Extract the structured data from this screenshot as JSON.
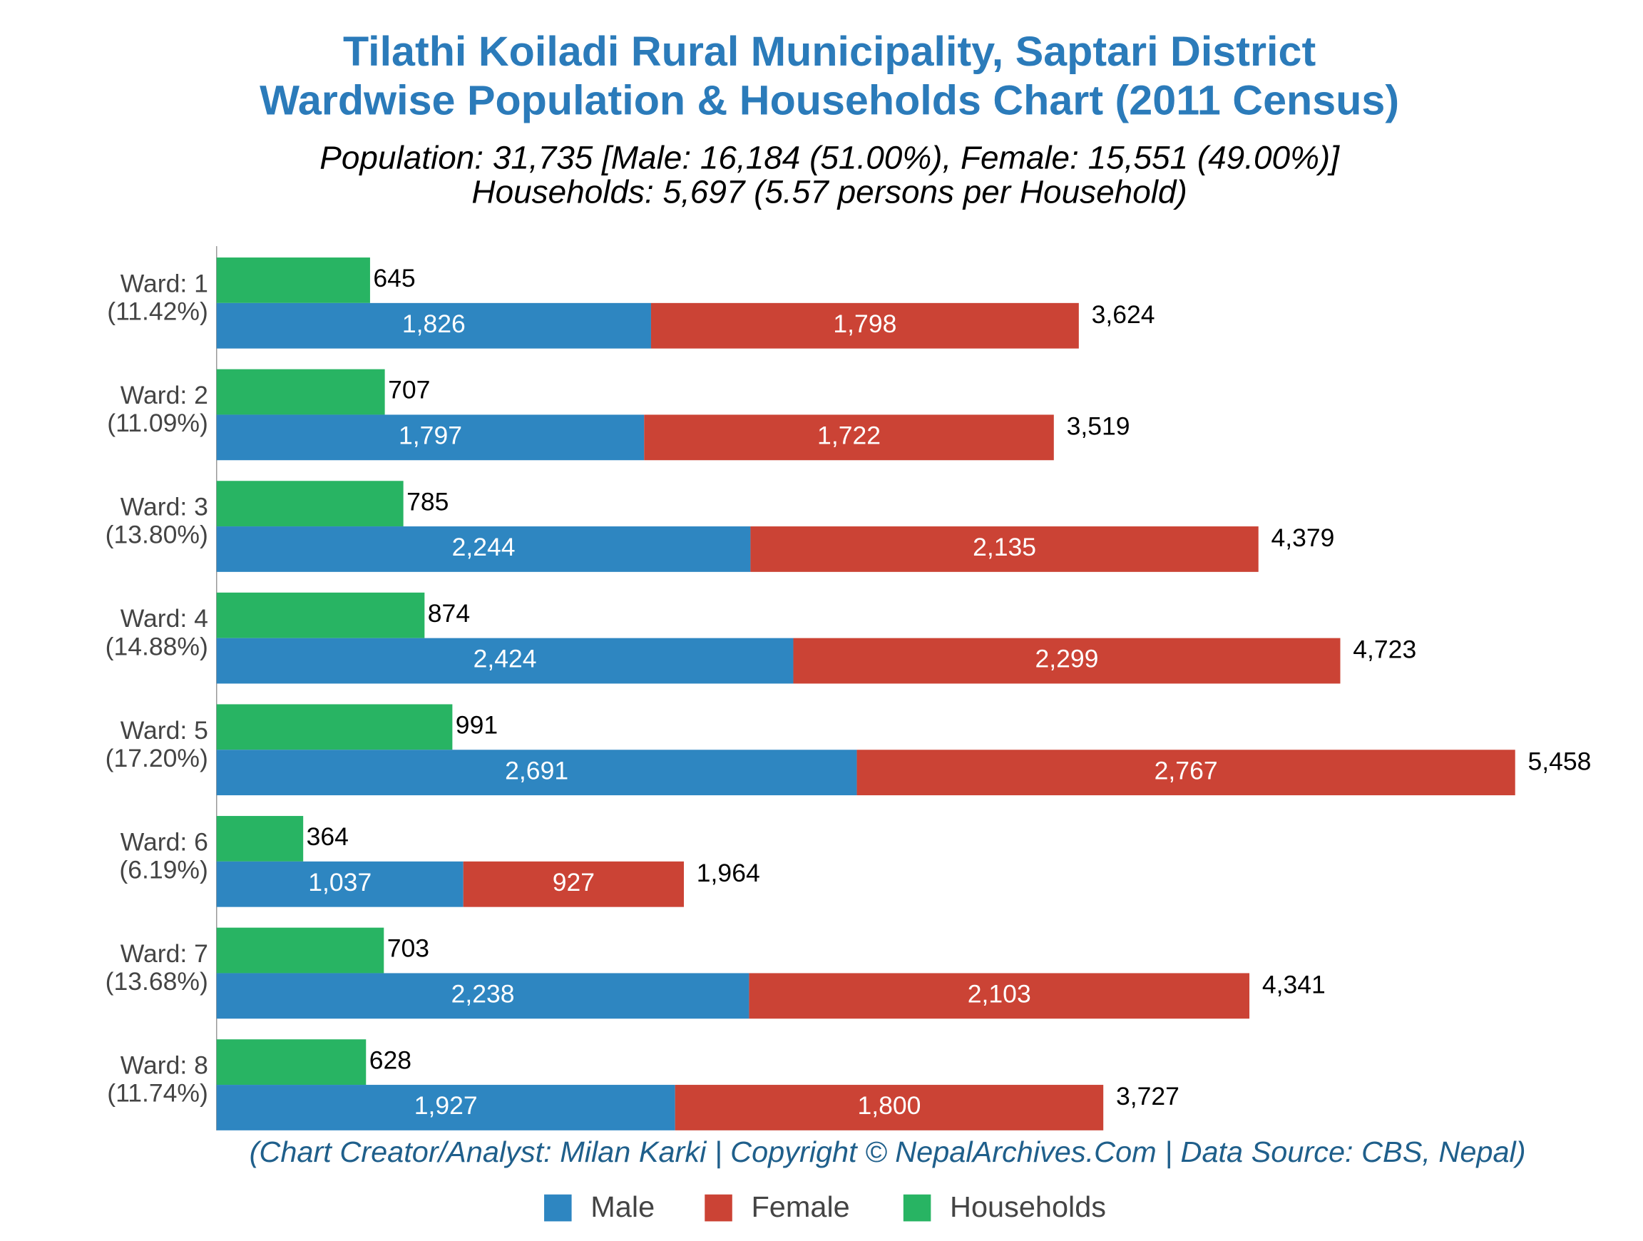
{
  "chart_data": {
    "type": "stacked-barh",
    "title": "Tilathi Koiladi Rural Municipality, Saptari District",
    "title_line2": "Wardwise Population & Households Chart (2011 Census)",
    "subtitle": "Population: 31,735 [Male: 16,184 (51.00%), Female: 15,551 (49.00%)]",
    "subtitle_line2": "Households: 5,697 (5.57 persons per Household)",
    "footer": "(Chart Creator/Analyst: Milan Karki | Copyright © NepalArchives.Com | Data Source: CBS, Nepal)",
    "categories": [
      "Ward: 1",
      "Ward: 2",
      "Ward: 3",
      "Ward: 4",
      "Ward: 5",
      "Ward: 6",
      "Ward: 7",
      "Ward: 8"
    ],
    "category_sublabels": [
      "(11.42%)",
      "(11.09%)",
      "(13.80%)",
      "(14.88%)",
      "(17.20%)",
      "(6.19%)",
      "(13.68%)",
      "(11.74%)"
    ],
    "series": [
      {
        "name": "Male",
        "color": "#2e86c1",
        "values": [
          1826,
          1797,
          2244,
          2424,
          2691,
          1037,
          2238,
          1927
        ],
        "value_labels": [
          "1,826",
          "1,797",
          "2,244",
          "2,424",
          "2,691",
          "1,037",
          "2,238",
          "1,927"
        ]
      },
      {
        "name": "Female",
        "color": "#cb4335",
        "values": [
          1798,
          1722,
          2135,
          2299,
          2767,
          927,
          2103,
          1800
        ],
        "value_labels": [
          "1,798",
          "1,722",
          "2,135",
          "2,299",
          "2,767",
          "927",
          "2,103",
          "1,800"
        ]
      },
      {
        "name": "Households",
        "color": "#28b463",
        "values": [
          645,
          707,
          785,
          874,
          991,
          364,
          703,
          628
        ],
        "value_labels": [
          "645",
          "707",
          "785",
          "874",
          "991",
          "364",
          "703",
          "628"
        ]
      }
    ],
    "totals": {
      "values": [
        3624,
        3519,
        4379,
        4723,
        5458,
        1964,
        4341,
        3727
      ],
      "value_labels": [
        "3,624",
        "3,519",
        "4,379",
        "4,723",
        "5,458",
        "1,964",
        "4,341",
        "3,727"
      ]
    }
  }
}
